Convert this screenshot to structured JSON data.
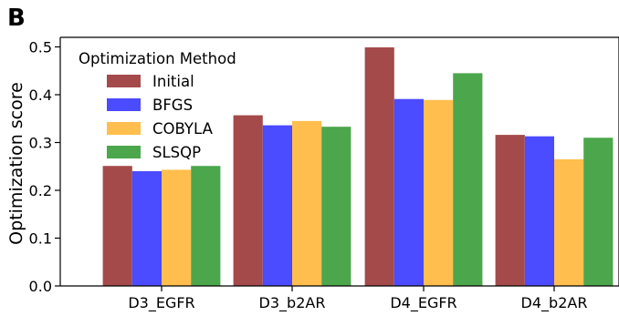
{
  "panel_label": "B",
  "chart_data": {
    "type": "bar",
    "title": "",
    "xlabel": "",
    "ylabel": "Optimization score",
    "ylim": [
      0,
      0.52
    ],
    "yticks": [
      0.0,
      0.1,
      0.2,
      0.3,
      0.4,
      0.5
    ],
    "ytick_labels": [
      "0.0",
      "0.1",
      "0.2",
      "0.3",
      "0.4",
      "0.5"
    ],
    "categories": [
      "D3_EGFR",
      "D3_b2AR",
      "D4_EGFR",
      "D4_b2AR"
    ],
    "grid": false,
    "legend": {
      "title": "Optimization Method",
      "placement": "top-left",
      "entries": [
        "Initial",
        "BFGS",
        "COBYLA",
        "SLSQP"
      ]
    },
    "series": [
      {
        "name": "Initial",
        "color": "#a44a4a",
        "values": [
          0.251,
          0.357,
          0.499,
          0.316
        ]
      },
      {
        "name": "BFGS",
        "color": "#4b4bff",
        "values": [
          0.24,
          0.336,
          0.391,
          0.313
        ]
      },
      {
        "name": "COBYLA",
        "color": "#ffbe4d",
        "values": [
          0.243,
          0.345,
          0.389,
          0.265
        ]
      },
      {
        "name": "SLSQP",
        "color": "#4ca64c",
        "values": [
          0.251,
          0.333,
          0.445,
          0.31
        ]
      }
    ]
  }
}
